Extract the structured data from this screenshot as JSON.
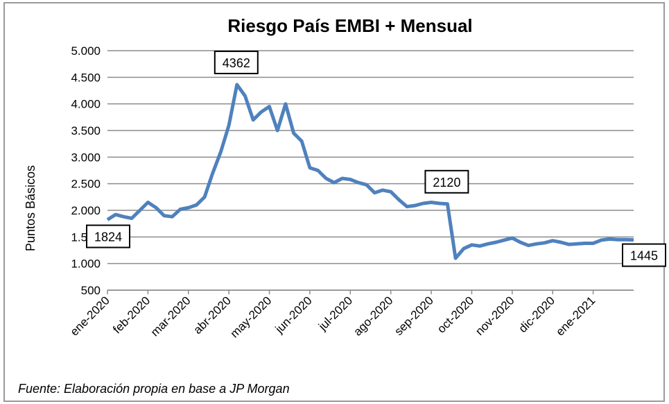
{
  "chart_data": {
    "type": "line",
    "title": "Riesgo País EMBI + Mensual",
    "y_label": "Puntos Básicos",
    "source": "Fuente: Elaboración propia en base a JP Morgan",
    "categories": [
      "ene-2020",
      null,
      null,
      null,
      null,
      "feb-2020",
      null,
      null,
      null,
      null,
      "mar-2020",
      null,
      null,
      null,
      null,
      "abr-2020",
      null,
      null,
      null,
      null,
      "may-2020",
      null,
      null,
      null,
      null,
      "jun-2020",
      null,
      null,
      null,
      null,
      "jul-2020",
      null,
      null,
      null,
      null,
      "ago-2020",
      null,
      null,
      null,
      null,
      "sep-2020",
      null,
      null,
      null,
      null,
      "oct-2020",
      null,
      null,
      null,
      null,
      "nov-2020",
      null,
      null,
      null,
      null,
      "dic-2020",
      null,
      null,
      null,
      null,
      "ene-2021",
      null,
      null,
      null,
      null,
      null
    ],
    "series": [
      {
        "name": "Riesgo País EMBI",
        "color": "#4f81bd",
        "values": [
          1824,
          1920,
          1880,
          1850,
          2000,
          2150,
          2050,
          1900,
          1880,
          2020,
          2050,
          2100,
          2250,
          2700,
          3100,
          3600,
          4362,
          4150,
          3700,
          3850,
          3950,
          3500,
          4000,
          3450,
          3300,
          2800,
          2750,
          2600,
          2520,
          2600,
          2580,
          2520,
          2480,
          2330,
          2380,
          2350,
          2200,
          2070,
          2090,
          2130,
          2150,
          2130,
          2120,
          1100,
          1280,
          1350,
          1330,
          1370,
          1400,
          1440,
          1480,
          1400,
          1340,
          1370,
          1390,
          1430,
          1400,
          1360,
          1370,
          1380,
          1380,
          1440,
          1460,
          1450,
          1450,
          1445
        ]
      }
    ],
    "labeled_points": [
      0,
      16,
      42,
      65
    ],
    "ylim": [
      500,
      5000
    ],
    "yticks": [
      {
        "value": 5000,
        "label": "5.000"
      },
      {
        "value": 4500,
        "label": "4.500"
      },
      {
        "value": 4000,
        "label": "4.000"
      },
      {
        "value": 3500,
        "label": "3.500"
      },
      {
        "value": 3000,
        "label": "3.000"
      },
      {
        "value": 2500,
        "label": "2.500"
      },
      {
        "value": 2000,
        "label": "2.000"
      },
      {
        "value": 1500,
        "label": "1.500"
      },
      {
        "value": 1000,
        "label": "1.000"
      },
      500
    ],
    "grid": true
  }
}
